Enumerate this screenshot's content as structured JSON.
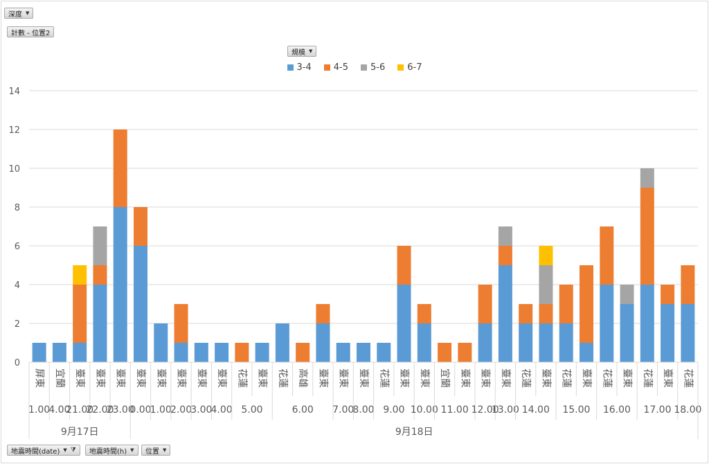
{
  "filters": {
    "depth": "深度",
    "measure": "計數 - 位置2",
    "magnitude": "規模",
    "date_field": "地震時間(date)",
    "hour_field": "地震時間(h)",
    "location_field": "位置"
  },
  "icons": {
    "dropdown": "chevron-down-icon",
    "filter": "filter-icon"
  },
  "chart_data": {
    "type": "bar",
    "stacked": true,
    "legend_position": "top",
    "grid": true,
    "ylim": [
      0,
      14
    ],
    "yticks": [
      0,
      2,
      4,
      6,
      8,
      10,
      12,
      14
    ],
    "series": [
      {
        "name": "3-4",
        "color": "#5b9bd5",
        "values": [
          1,
          1,
          1,
          4,
          8,
          6,
          2,
          1,
          1,
          1,
          0,
          1,
          2,
          0,
          2,
          1,
          1,
          1,
          4,
          2,
          0,
          0,
          2,
          5,
          2,
          2,
          2,
          1,
          4,
          3,
          4,
          3,
          3
        ]
      },
      {
        "name": "4-5",
        "color": "#ed7d31",
        "values": [
          0,
          0,
          3,
          1,
          4,
          2,
          0,
          2,
          0,
          0,
          1,
          0,
          0,
          1,
          1,
          0,
          0,
          0,
          2,
          1,
          1,
          1,
          2,
          1,
          1,
          1,
          2,
          4,
          3,
          0,
          5,
          1,
          2
        ]
      },
      {
        "name": "5-6",
        "color": "#a5a5a5",
        "values": [
          0,
          0,
          0,
          2,
          0,
          0,
          0,
          0,
          0,
          0,
          0,
          0,
          0,
          0,
          0,
          0,
          0,
          0,
          0,
          0,
          0,
          0,
          0,
          1,
          0,
          2,
          0,
          0,
          0,
          1,
          1,
          0,
          0
        ]
      },
      {
        "name": "6-7",
        "color": "#ffc000",
        "values": [
          0,
          0,
          1,
          0,
          0,
          0,
          0,
          0,
          0,
          0,
          0,
          0,
          0,
          0,
          0,
          0,
          0,
          0,
          0,
          0,
          0,
          0,
          0,
          0,
          0,
          1,
          0,
          0,
          0,
          0,
          0,
          0,
          0
        ]
      }
    ],
    "locations": [
      "屏東",
      "宜蘭",
      "臺東",
      "臺東",
      "臺東",
      "臺東",
      "臺東",
      "臺東",
      "臺東",
      "臺東",
      "花蓮",
      "臺東",
      "花蓮",
      "高雄",
      "臺東",
      "臺東",
      "臺東",
      "花蓮",
      "臺東",
      "臺東",
      "宜蘭",
      "臺東",
      "臺東",
      "臺東",
      "花蓮",
      "臺東",
      "花蓮",
      "臺東",
      "花蓮",
      "臺東",
      "花蓮",
      "臺東",
      "花蓮"
    ],
    "hour_groups": [
      {
        "label": "1.00",
        "span": 1
      },
      {
        "label": "4.00",
        "span": 1
      },
      {
        "label": "21.00",
        "span": 1
      },
      {
        "label": "22.00",
        "span": 1
      },
      {
        "label": "23.00",
        "span": 1
      },
      {
        "label": "0.00",
        "span": 1
      },
      {
        "label": "1.00",
        "span": 1
      },
      {
        "label": "2.00",
        "span": 1
      },
      {
        "label": "3.00",
        "span": 1
      },
      {
        "label": "4.00",
        "span": 1
      },
      {
        "label": "5.00",
        "span": 2
      },
      {
        "label": "6.00",
        "span": 3
      },
      {
        "label": "7.00",
        "span": 1
      },
      {
        "label": "8.00",
        "span": 1
      },
      {
        "label": "9.00",
        "span": 2
      },
      {
        "label": "10.00",
        "span": 1
      },
      {
        "label": "11.00",
        "span": 2
      },
      {
        "label": "12.00",
        "span": 1
      },
      {
        "label": "13.00",
        "span": 1
      },
      {
        "label": "14.00",
        "span": 2
      },
      {
        "label": "15.00",
        "span": 2
      },
      {
        "label": "16.00",
        "span": 2
      },
      {
        "label": "17.00",
        "span": 2
      },
      {
        "label": "18.00",
        "span": 1
      }
    ],
    "date_groups": [
      {
        "label": "9月17日",
        "span": 5
      },
      {
        "label": "9月18日",
        "span": 28
      }
    ]
  }
}
